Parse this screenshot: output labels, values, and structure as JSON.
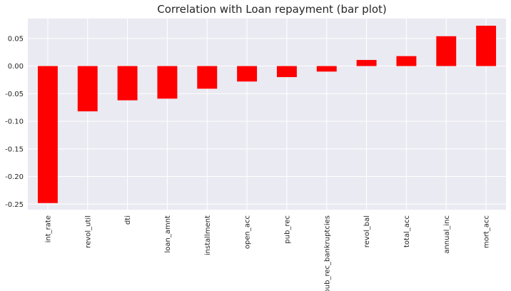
{
  "chart_data": {
    "type": "bar",
    "title": "Correlation with Loan repayment (bar plot)",
    "xlabel": "",
    "ylabel": "",
    "categories": [
      "int_rate",
      "revol_util",
      "dti",
      "loan_amnt",
      "installment",
      "open_acc",
      "pub_rec",
      "pub_rec_bankruptcies",
      "revol_bal",
      "total_acc",
      "annual_inc",
      "mort_acc"
    ],
    "values": [
      -0.248,
      -0.082,
      -0.062,
      -0.059,
      -0.041,
      -0.028,
      -0.02,
      -0.01,
      0.011,
      0.018,
      0.054,
      0.073
    ],
    "ylim": [
      -0.26,
      0.086
    ],
    "yticks": [
      -0.25,
      -0.2,
      -0.15,
      -0.1,
      -0.05,
      0.0,
      0.05
    ],
    "ytick_labels": [
      "-0.25",
      "-0.20",
      "-0.15",
      "-0.10",
      "-0.05",
      "0.00",
      "0.05"
    ],
    "grid": true,
    "legend": "none",
    "colors": {
      "bar": "#ff0000",
      "plot_background": "#eaeaf2",
      "grid": "#ffffff",
      "text": "#262626"
    }
  }
}
